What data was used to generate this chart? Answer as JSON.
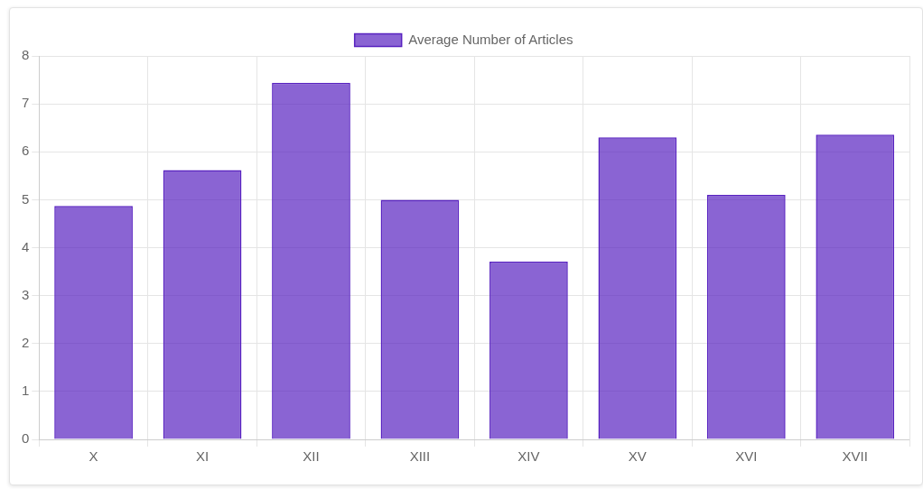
{
  "chart_data": {
    "type": "bar",
    "categories": [
      "X",
      "XI",
      "XII",
      "XIII",
      "XIV",
      "XV",
      "XVI",
      "XVII"
    ],
    "series": [
      {
        "name": "Average Number of Articles",
        "color": "#5822c0",
        "values": [
          4.87,
          5.62,
          7.44,
          5.0,
          3.71,
          6.3,
          5.1,
          6.36
        ]
      }
    ],
    "ylim": [
      0,
      8
    ],
    "yticks": [
      0,
      1,
      2,
      3,
      4,
      5,
      6,
      7,
      8
    ],
    "grid": true,
    "legend": "top"
  }
}
